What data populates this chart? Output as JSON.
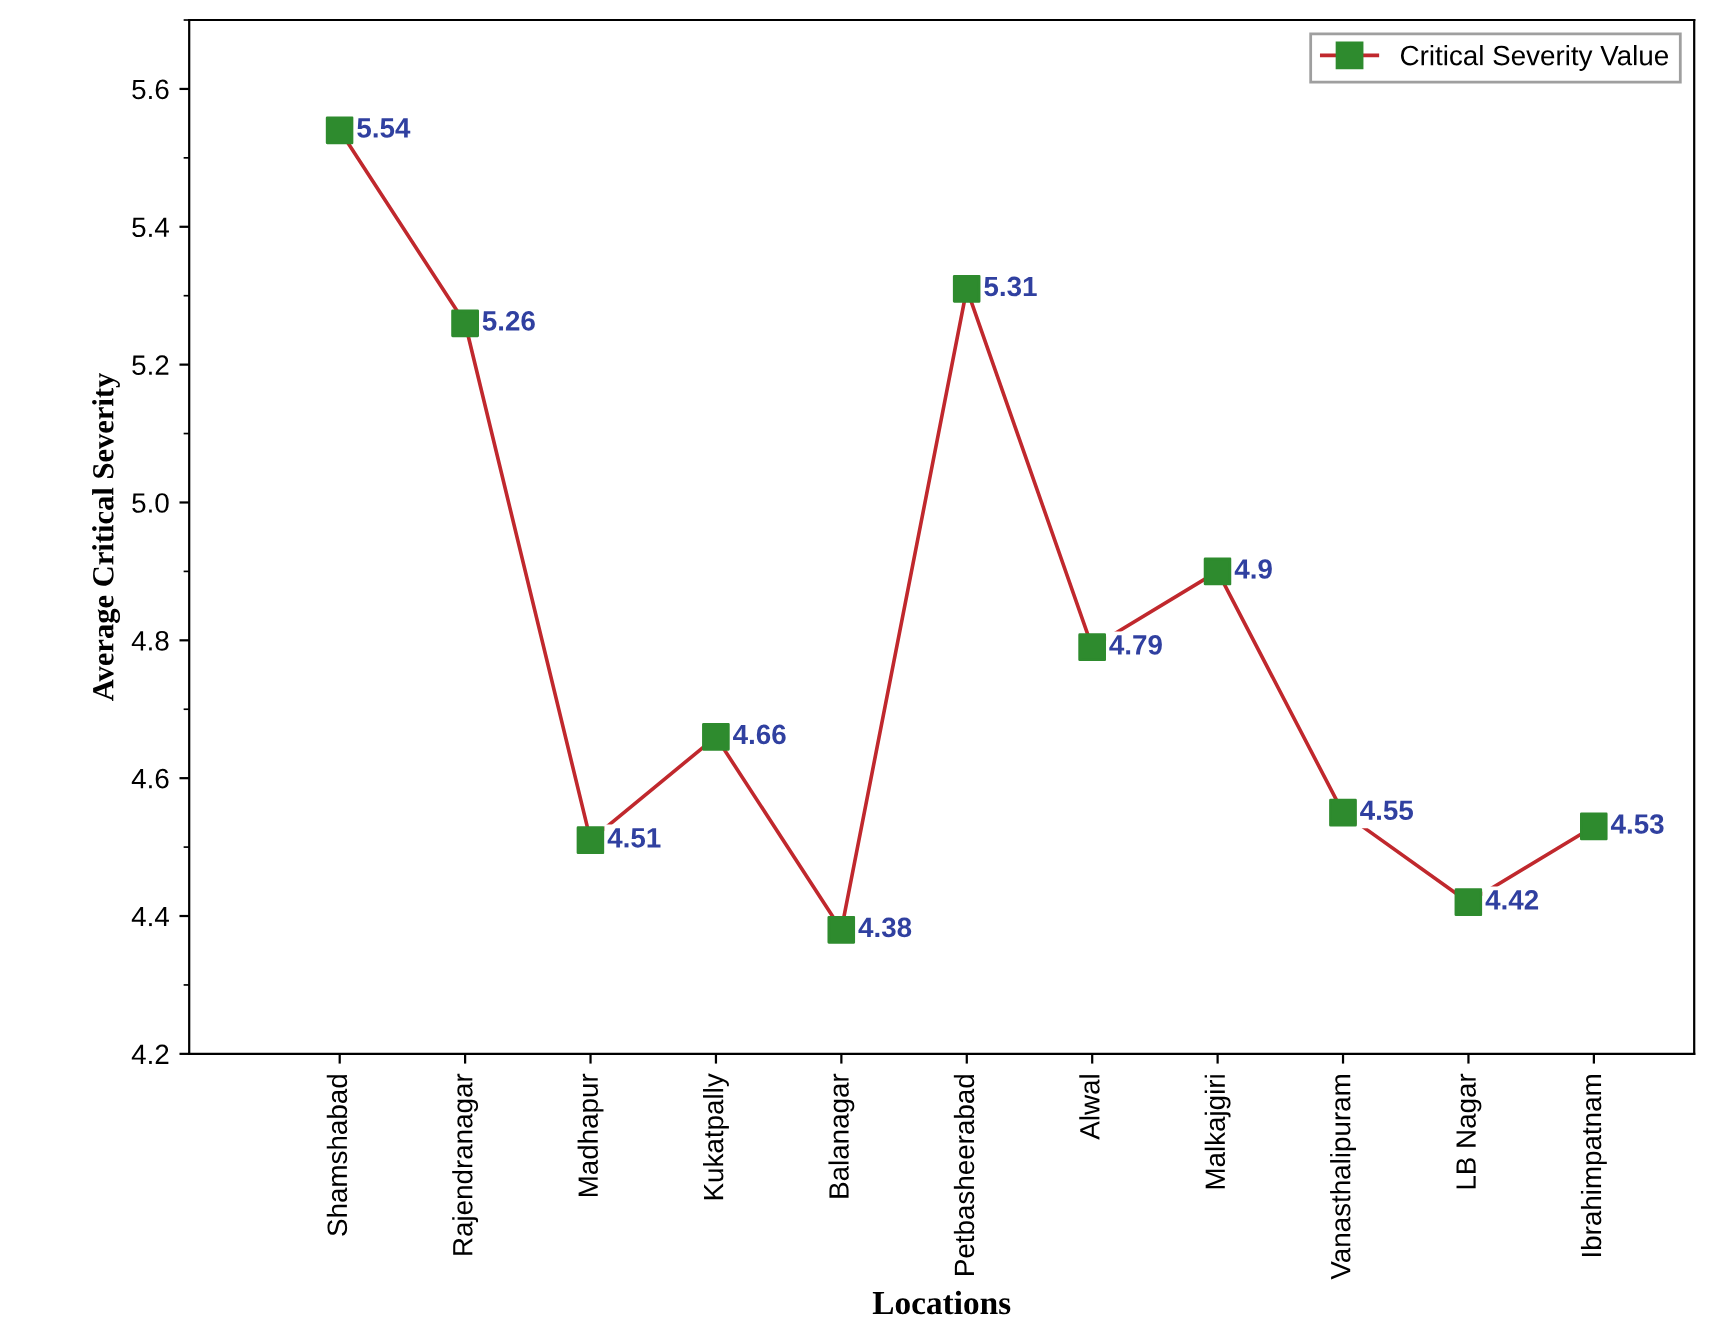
{
  "chart_data": {
    "type": "line",
    "xlabel": "Locations",
    "ylabel": "Average Critical Severity",
    "categories": [
      "Shamshabad",
      "Rajendranagar",
      "Madhapur",
      "Kukatpally",
      "Balanagar",
      "Petbasheerabad",
      "Alwal",
      "Malkajgiri",
      "Vanasthalipuram",
      "LB Nagar",
      "Ibrahimpatnam"
    ],
    "series": [
      {
        "name": "Critical Severity Value",
        "color": "#c0282d",
        "colors": [
          "#2e8b2e",
          "#2e8b2e",
          "#2e8b2e",
          "#2e8b2e",
          "#2e8b2e",
          "#2e8b2e",
          "#2e8b2e",
          "#2e8b2e",
          "#2e8b2e",
          "#2e8b2e",
          "#2e8b2e"
        ],
        "values": [
          5.54,
          5.26,
          4.51,
          4.66,
          4.38,
          5.31,
          4.79,
          4.9,
          4.55,
          4.42,
          4.53
        ]
      }
    ],
    "ylim": [
      4.2,
      5.7
    ],
    "yticks": [
      4.2,
      4.4,
      4.6,
      4.8,
      {
        "value": 5.0,
        "label": "5.0"
      },
      5.2,
      5.4,
      5.6
    ],
    "data_labels": true,
    "legend": "top right",
    "marker": "square",
    "line_style": "solid",
    "grid": false
  }
}
